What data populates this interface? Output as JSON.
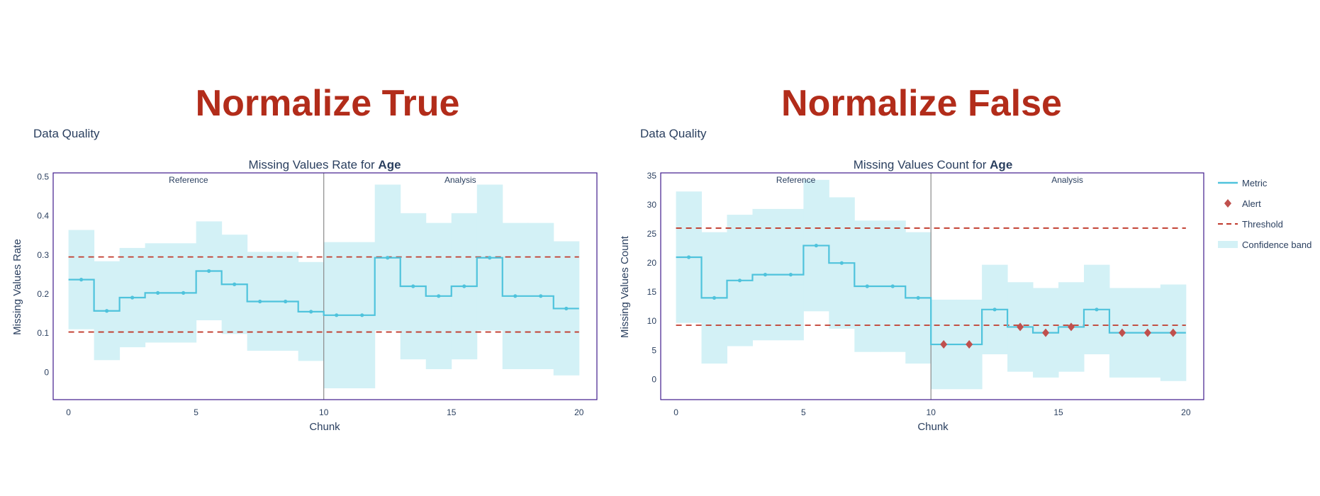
{
  "colors": {
    "title": "#b22c1a",
    "text": "#2a3f5f",
    "metric": "#4fc3dc",
    "band": "#d3f1f6",
    "threshold": "#c0392b",
    "alert": "#c0504d",
    "frame": "#3f1a8c",
    "divider": "#8a8a8a"
  },
  "legend": {
    "metric": "Metric",
    "alert": "Alert",
    "threshold": "Threshold",
    "band": "Confidence band"
  },
  "chart_data": [
    {
      "type": "line",
      "heading": "Normalize True",
      "section_label": "Data Quality",
      "title_prefix": "Missing Values Rate for ",
      "title_bold": "Age",
      "xlabel": "Chunk",
      "ylabel": "Missing Values Rate",
      "xlim": [
        -0.6,
        20.7
      ],
      "ylim": [
        -0.07,
        0.51
      ],
      "xticks": [
        0,
        5,
        10,
        15,
        20
      ],
      "yticks": [
        0,
        0.1,
        0.2,
        0.3,
        0.4,
        0.5
      ],
      "ytick_labels": [
        "0",
        "0.1",
        "0.2",
        "0.3",
        "0.4",
        "0.5"
      ],
      "period_split": 10,
      "periods": [
        "Reference",
        "Analysis"
      ],
      "thresholds": {
        "upper": 0.295,
        "lower": 0.103
      },
      "series": [
        {
          "name": "Metric",
          "values": [
            0.237,
            0.157,
            0.191,
            0.203,
            0.203,
            0.259,
            0.225,
            0.181,
            0.181,
            0.155,
            0.146,
            0.146,
            0.293,
            0.22,
            0.195,
            0.22,
            0.293,
            0.195,
            0.195,
            0.163
          ]
        },
        {
          "name": "Confidence band lower",
          "values": [
            0.11,
            0.031,
            0.064,
            0.076,
            0.076,
            0.133,
            0.098,
            0.055,
            0.055,
            0.029,
            -0.041,
            -0.041,
            0.107,
            0.033,
            0.008,
            0.033,
            0.107,
            0.008,
            0.008,
            -0.008
          ]
        },
        {
          "name": "Confidence band upper",
          "values": [
            0.364,
            0.284,
            0.318,
            0.33,
            0.33,
            0.386,
            0.352,
            0.308,
            0.308,
            0.282,
            0.333,
            0.333,
            0.48,
            0.407,
            0.382,
            0.407,
            0.48,
            0.382,
            0.382,
            0.335
          ]
        }
      ],
      "alerts": []
    },
    {
      "type": "line",
      "heading": "Normalize False",
      "section_label": "Data Quality",
      "title_prefix": "Missing Values Count for ",
      "title_bold": "Age",
      "xlabel": "Chunk",
      "ylabel": "Missing Values Count",
      "xlim": [
        -0.6,
        20.7
      ],
      "ylim": [
        -3.5,
        35.5
      ],
      "xticks": [
        0,
        5,
        10,
        15,
        20
      ],
      "yticks": [
        0,
        5,
        10,
        15,
        20,
        25,
        30,
        35
      ],
      "ytick_labels": [
        "0",
        "5",
        "10",
        "15",
        "20",
        "25",
        "30",
        "35"
      ],
      "period_split": 10,
      "periods": [
        "Reference",
        "Analysis"
      ],
      "thresholds": {
        "upper": 26,
        "lower": 9.3
      },
      "series": [
        {
          "name": "Metric",
          "values": [
            21,
            14,
            17,
            18,
            18,
            23,
            20,
            16,
            16,
            14,
            6,
            6,
            12,
            9,
            8,
            9,
            12,
            8,
            8,
            8
          ]
        },
        {
          "name": "Confidence band lower",
          "values": [
            9.7,
            2.7,
            5.7,
            6.7,
            6.7,
            11.7,
            8.7,
            4.7,
            4.7,
            2.7,
            -1.7,
            -1.7,
            4.3,
            1.3,
            0.3,
            1.3,
            4.3,
            0.3,
            0.3,
            -0.3
          ]
        },
        {
          "name": "Confidence band upper",
          "values": [
            32.3,
            25.3,
            28.3,
            29.3,
            29.3,
            34.3,
            31.3,
            27.3,
            27.3,
            25.3,
            13.7,
            13.7,
            19.7,
            16.7,
            15.7,
            16.7,
            19.7,
            15.7,
            15.7,
            16.3
          ]
        }
      ],
      "alerts": [
        10,
        11,
        13,
        14,
        15,
        17,
        18,
        19
      ]
    }
  ]
}
